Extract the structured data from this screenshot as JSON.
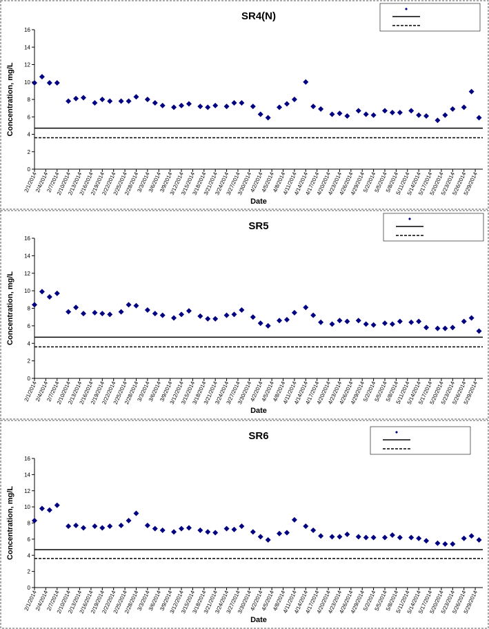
{
  "chart_data": [
    {
      "type": "scatter",
      "title": "SR4(N)",
      "xlabel": "Date",
      "ylabel": "Concentration, mg/L",
      "x": [
        "2/1/2014",
        "2/3/2014",
        "2/5/2014",
        "2/7/2014",
        "2/10/2014",
        "2/12/2014",
        "2/14/2014",
        "2/17/2014",
        "2/19/2014",
        "2/21/2014",
        "2/24/2014",
        "2/26/2014",
        "2/28/2014",
        "3/3/2014",
        "3/5/2014",
        "3/7/2014",
        "3/10/2014",
        "3/12/2014",
        "3/14/2014",
        "3/17/2014",
        "3/19/2014",
        "3/21/2014",
        "3/24/2014",
        "3/26/2014",
        "3/28/2014",
        "3/31/2014",
        "4/2/2014",
        "4/4/2014",
        "4/7/2014",
        "4/9/2014",
        "4/11/2014",
        "4/14/2014",
        "4/16/2014",
        "4/18/2014",
        "4/21/2014",
        "4/23/2014",
        "4/25/2014",
        "4/28/2014",
        "4/30/2014",
        "5/2/2014",
        "5/5/2014",
        "5/7/2014",
        "5/9/2014",
        "5/12/2014",
        "5/14/2014",
        "5/16/2014",
        "5/19/2014",
        "5/21/2014",
        "5/23/2014",
        "5/26/2014",
        "5/28/2014",
        "5/30/2014"
      ],
      "values": [
        9.9,
        10.6,
        9.9,
        9.9,
        7.8,
        8.1,
        8.2,
        7.6,
        8.0,
        7.8,
        7.8,
        7.8,
        8.3,
        8.0,
        7.6,
        7.3,
        7.1,
        7.3,
        7.5,
        7.2,
        7.1,
        7.3,
        7.2,
        7.6,
        7.6,
        7.2,
        6.3,
        5.9,
        7.1,
        7.5,
        8.0,
        10.0,
        7.2,
        6.9,
        6.3,
        6.4,
        6.1,
        6.7,
        6.3,
        6.2,
        6.7,
        6.5,
        6.5,
        6.7,
        6.2,
        6.1,
        5.6,
        6.2,
        6.9,
        7.1,
        8.9,
        5.9
      ],
      "color": "#000080",
      "lines": [
        {
          "value": 4.7,
          "style": "solid"
        },
        {
          "value": 3.6,
          "style": "dashed"
        }
      ],
      "xlim": [
        "2/1/2014",
        "5/31/2014"
      ],
      "xticks": [
        "2/1/2014",
        "2/4/2014",
        "2/7/2014",
        "2/10/2014",
        "2/13/2014",
        "2/16/2014",
        "2/19/2014",
        "2/22/2014",
        "2/25/2014",
        "2/28/2014",
        "3/3/2014",
        "3/6/2014",
        "3/9/2014",
        "3/12/2014",
        "3/15/2014",
        "3/18/2014",
        "3/21/2014",
        "3/24/2014",
        "3/27/2014",
        "3/30/2014",
        "4/2/2014",
        "4/5/2014",
        "4/8/2014",
        "4/11/2014",
        "4/14/2014",
        "4/17/2014",
        "4/20/2014",
        "4/23/2014",
        "4/26/2014",
        "4/29/2014",
        "5/2/2014",
        "5/5/2014",
        "5/8/2014",
        "5/11/2014",
        "5/14/2014",
        "5/17/2014",
        "5/20/2014",
        "5/23/2014",
        "5/26/2014",
        "5/29/2014"
      ],
      "ylim": [
        0,
        16
      ],
      "yticks": [
        0,
        2,
        4,
        6,
        8,
        10,
        12,
        14,
        16
      ]
    },
    {
      "type": "scatter",
      "title": "SR5",
      "xlabel": "Date",
      "ylabel": "Concentration, mg/L",
      "x": [
        "2/1/2014",
        "2/3/2014",
        "2/5/2014",
        "2/7/2014",
        "2/10/2014",
        "2/12/2014",
        "2/14/2014",
        "2/17/2014",
        "2/19/2014",
        "2/21/2014",
        "2/24/2014",
        "2/26/2014",
        "2/28/2014",
        "3/3/2014",
        "3/5/2014",
        "3/7/2014",
        "3/10/2014",
        "3/12/2014",
        "3/14/2014",
        "3/17/2014",
        "3/19/2014",
        "3/21/2014",
        "3/24/2014",
        "3/26/2014",
        "3/28/2014",
        "3/31/2014",
        "4/2/2014",
        "4/4/2014",
        "4/7/2014",
        "4/9/2014",
        "4/11/2014",
        "4/14/2014",
        "4/16/2014",
        "4/18/2014",
        "4/21/2014",
        "4/23/2014",
        "4/25/2014",
        "4/28/2014",
        "4/30/2014",
        "5/2/2014",
        "5/5/2014",
        "5/7/2014",
        "5/9/2014",
        "5/12/2014",
        "5/14/2014",
        "5/16/2014",
        "5/19/2014",
        "5/21/2014",
        "5/23/2014",
        "5/26/2014",
        "5/28/2014",
        "5/30/2014"
      ],
      "values": [
        8.4,
        9.9,
        9.3,
        9.7,
        7.6,
        8.1,
        7.4,
        7.5,
        7.4,
        7.3,
        7.6,
        8.4,
        8.3,
        7.8,
        7.4,
        7.2,
        6.9,
        7.3,
        7.7,
        7.1,
        6.8,
        6.8,
        7.2,
        7.3,
        7.8,
        7.0,
        6.3,
        6.0,
        6.6,
        6.7,
        7.5,
        8.1,
        7.2,
        6.4,
        6.2,
        6.6,
        6.5,
        6.6,
        6.2,
        6.1,
        6.3,
        6.2,
        6.5,
        6.4,
        6.5,
        5.8,
        5.7,
        5.7,
        5.8,
        6.5,
        6.9,
        5.4
      ],
      "color": "#000080",
      "lines": [
        {
          "value": 4.7,
          "style": "solid"
        },
        {
          "value": 3.6,
          "style": "dashed"
        }
      ],
      "xlim": [
        "2/1/2014",
        "5/31/2014"
      ],
      "xticks": [
        "2/1/2014",
        "2/4/2014",
        "2/7/2014",
        "2/10/2014",
        "2/13/2014",
        "2/16/2014",
        "2/19/2014",
        "2/22/2014",
        "2/25/2014",
        "2/28/2014",
        "3/3/2014",
        "3/6/2014",
        "3/9/2014",
        "3/12/2014",
        "3/15/2014",
        "3/18/2014",
        "3/21/2014",
        "3/24/2014",
        "3/27/2014",
        "3/30/2014",
        "4/2/2014",
        "4/5/2014",
        "4/8/2014",
        "4/11/2014",
        "4/14/2014",
        "4/17/2014",
        "4/20/2014",
        "4/23/2014",
        "4/26/2014",
        "4/29/2014",
        "5/2/2014",
        "5/5/2014",
        "5/8/2014",
        "5/11/2014",
        "5/14/2014",
        "5/17/2014",
        "5/20/2014",
        "5/23/2014",
        "5/26/2014",
        "5/29/2014"
      ],
      "ylim": [
        0,
        16
      ],
      "yticks": [
        0,
        2,
        4,
        6,
        8,
        10,
        12,
        14,
        16
      ]
    },
    {
      "type": "scatter",
      "title": "SR6",
      "xlabel": "Date",
      "ylabel": "Concentration, mg/L",
      "x": [
        "2/1/2014",
        "2/3/2014",
        "2/5/2014",
        "2/7/2014",
        "2/10/2014",
        "2/12/2014",
        "2/14/2014",
        "2/17/2014",
        "2/19/2014",
        "2/21/2014",
        "2/24/2014",
        "2/26/2014",
        "2/28/2014",
        "3/3/2014",
        "3/5/2014",
        "3/7/2014",
        "3/10/2014",
        "3/12/2014",
        "3/14/2014",
        "3/17/2014",
        "3/19/2014",
        "3/21/2014",
        "3/24/2014",
        "3/26/2014",
        "3/28/2014",
        "3/31/2014",
        "4/2/2014",
        "4/4/2014",
        "4/7/2014",
        "4/9/2014",
        "4/11/2014",
        "4/14/2014",
        "4/16/2014",
        "4/18/2014",
        "4/21/2014",
        "4/23/2014",
        "4/25/2014",
        "4/28/2014",
        "4/30/2014",
        "5/2/2014",
        "5/5/2014",
        "5/7/2014",
        "5/9/2014",
        "5/12/2014",
        "5/14/2014",
        "5/16/2014",
        "5/19/2014",
        "5/21/2014",
        "5/23/2014",
        "5/26/2014",
        "5/28/2014",
        "5/30/2014"
      ],
      "values": [
        8.3,
        9.8,
        9.6,
        10.2,
        7.6,
        7.7,
        7.4,
        7.6,
        7.4,
        7.6,
        7.7,
        8.3,
        9.2,
        7.7,
        7.3,
        7.1,
        6.9,
        7.3,
        7.4,
        7.1,
        6.9,
        6.8,
        7.3,
        7.2,
        7.6,
        6.9,
        6.3,
        5.9,
        6.7,
        6.8,
        8.4,
        7.6,
        7.1,
        6.4,
        6.3,
        6.3,
        6.6,
        6.3,
        6.2,
        6.2,
        6.2,
        6.5,
        6.2,
        6.2,
        6.1,
        5.8,
        5.5,
        5.4,
        5.4,
        6.1,
        6.4,
        5.9
      ],
      "color": "#000080",
      "lines": [
        {
          "value": 4.7,
          "style": "solid"
        },
        {
          "value": 3.6,
          "style": "dashed"
        }
      ],
      "xlim": [
        "2/1/2014",
        "5/31/2014"
      ],
      "xticks": [
        "2/1/2014",
        "2/4/2014",
        "2/7/2014",
        "2/10/2014",
        "2/13/2014",
        "2/16/2014",
        "2/19/2014",
        "2/22/2014",
        "2/25/2014",
        "2/28/2014",
        "3/3/2014",
        "3/6/2014",
        "3/9/2014",
        "3/12/2014",
        "3/15/2014",
        "3/18/2014",
        "3/21/2014",
        "3/24/2014",
        "3/27/2014",
        "3/30/2014",
        "4/2/2014",
        "4/5/2014",
        "4/8/2014",
        "4/11/2014",
        "4/14/2014",
        "4/17/2014",
        "4/20/2014",
        "4/23/2014",
        "4/26/2014",
        "4/29/2014",
        "5/2/2014",
        "5/5/2014",
        "5/8/2014",
        "5/11/2014",
        "5/14/2014",
        "5/17/2014",
        "5/20/2014",
        "5/23/2014",
        "5/26/2014",
        "5/29/2014"
      ],
      "ylim": [
        0,
        16
      ],
      "yticks": [
        0,
        2,
        4,
        6,
        8,
        10,
        12,
        14,
        16
      ]
    }
  ]
}
